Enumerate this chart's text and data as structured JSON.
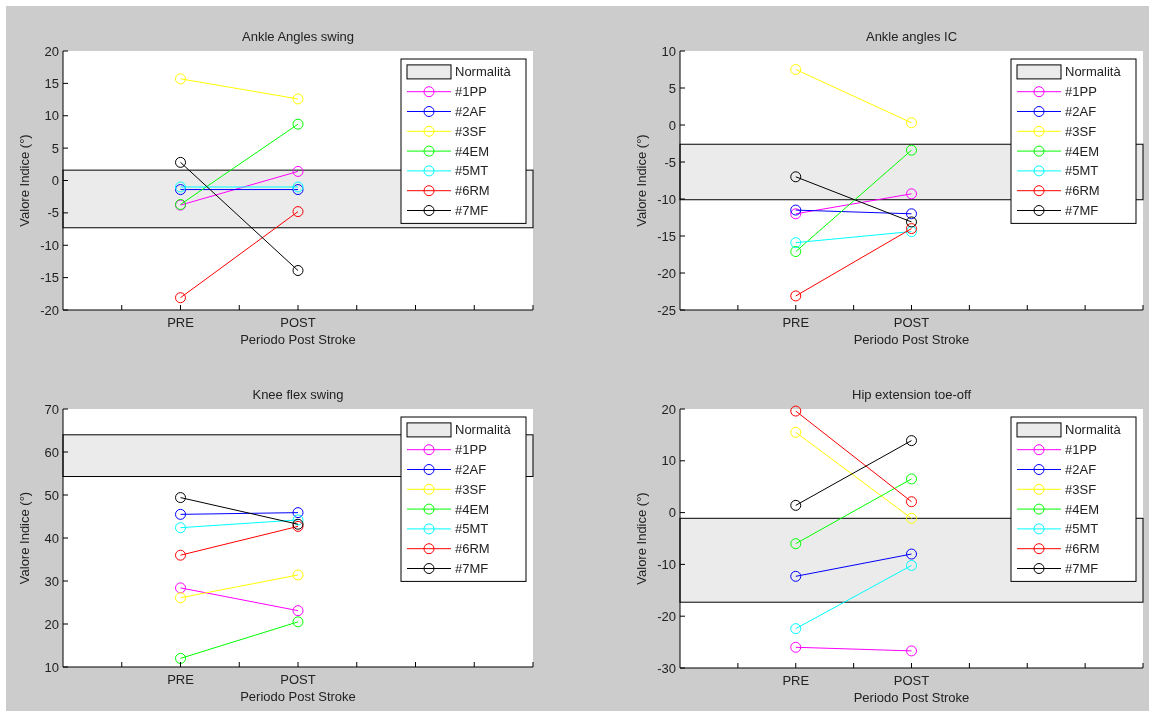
{
  "chart_data": [
    {
      "type": "line",
      "title": "Ankle Angles swing",
      "xlabel": "Periodo Post Stroke",
      "ylabel": "Valore Indice (°)",
      "categories": [
        "PRE",
        "POST"
      ],
      "ylim": [
        -20,
        20
      ],
      "yticks": [
        -20,
        -15,
        -10,
        -5,
        0,
        5,
        10,
        15,
        20
      ],
      "grid": false,
      "legend": "top right",
      "marker": "circle",
      "line_style": "solid",
      "bands": [
        {
          "axis": "y",
          "from": -7.3,
          "to": 1.6,
          "label": "Normalità",
          "color": "#ebebeb"
        }
      ],
      "series": [
        {
          "name": "#1PP",
          "color": "#ff00ff",
          "values": [
            -3.8,
            1.4
          ]
        },
        {
          "name": "#2AF",
          "color": "#0000ff",
          "values": [
            -1.4,
            -1.4
          ]
        },
        {
          "name": "#3SF",
          "color": "#ffff00",
          "values": [
            15.7,
            12.6
          ]
        },
        {
          "name": "#4EM",
          "color": "#00ff00",
          "values": [
            -3.7,
            8.7
          ]
        },
        {
          "name": "#5MT",
          "color": "#00ffff",
          "values": [
            -1.0,
            -1.0
          ]
        },
        {
          "name": "#6RM",
          "color": "#ff0000",
          "values": [
            -18.1,
            -4.8
          ]
        },
        {
          "name": "#7MF",
          "color": "#000000",
          "values": [
            2.8,
            -13.9
          ]
        }
      ]
    },
    {
      "type": "line",
      "title": "Ankle angles IC",
      "xlabel": "Periodo Post Stroke",
      "ylabel": "Valore Indice (°)",
      "categories": [
        "PRE",
        "POST"
      ],
      "ylim": [
        -25,
        10
      ],
      "yticks": [
        -25,
        -20,
        -15,
        -10,
        -5,
        0,
        5,
        10
      ],
      "grid": false,
      "legend": "top right",
      "marker": "circle",
      "line_style": "solid",
      "bands": [
        {
          "axis": "y",
          "from": -10.1,
          "to": -2.6,
          "label": "Normalità",
          "color": "#ebebeb"
        }
      ],
      "series": [
        {
          "name": "#1PP",
          "color": "#ff00ff",
          "values": [
            -12.0,
            -9.3
          ]
        },
        {
          "name": "#2AF",
          "color": "#0000ff",
          "values": [
            -11.5,
            -12.0
          ]
        },
        {
          "name": "#3SF",
          "color": "#ffff00",
          "values": [
            7.5,
            0.3
          ]
        },
        {
          "name": "#4EM",
          "color": "#00ff00",
          "values": [
            -17.1,
            -3.4
          ]
        },
        {
          "name": "#5MT",
          "color": "#00ffff",
          "values": [
            -15.9,
            -14.4
          ]
        },
        {
          "name": "#6RM",
          "color": "#ff0000",
          "values": [
            -23.1,
            -14.0
          ]
        },
        {
          "name": "#7MF",
          "color": "#000000",
          "values": [
            -7.0,
            -13.1
          ]
        }
      ]
    },
    {
      "type": "line",
      "title": "Knee flex swing",
      "xlabel": "Periodo Post Stroke",
      "ylabel": "Valore Indice (°)",
      "categories": [
        "PRE",
        "POST"
      ],
      "ylim": [
        10,
        70
      ],
      "yticks": [
        10,
        20,
        30,
        40,
        50,
        60,
        70
      ],
      "grid": false,
      "legend": "top right",
      "marker": "circle",
      "line_style": "solid",
      "bands": [
        {
          "axis": "y",
          "from": 54.3,
          "to": 64.0,
          "label": "Normalità",
          "color": "#ebebeb"
        }
      ],
      "series": [
        {
          "name": "#1PP",
          "color": "#ff00ff",
          "values": [
            28.4,
            23.1
          ]
        },
        {
          "name": "#2AF",
          "color": "#0000ff",
          "values": [
            45.5,
            45.9
          ]
        },
        {
          "name": "#3SF",
          "color": "#ffff00",
          "values": [
            26.1,
            31.4
          ]
        },
        {
          "name": "#4EM",
          "color": "#00ff00",
          "values": [
            12.0,
            20.5
          ]
        },
        {
          "name": "#5MT",
          "color": "#00ffff",
          "values": [
            42.4,
            44.2
          ]
        },
        {
          "name": "#6RM",
          "color": "#ff0000",
          "values": [
            36.0,
            42.7
          ]
        },
        {
          "name": "#7MF",
          "color": "#000000",
          "values": [
            49.4,
            43.2
          ]
        }
      ]
    },
    {
      "type": "line",
      "title": "Hip extension toe-off",
      "xlabel": "Periodo Post Stroke",
      "ylabel": "Valore Indice (°)",
      "categories": [
        "PRE",
        "POST"
      ],
      "ylim": [
        -30,
        20
      ],
      "yticks": [
        -30,
        -20,
        -10,
        0,
        10,
        20
      ],
      "grid": false,
      "legend": "top right",
      "marker": "circle",
      "line_style": "solid",
      "bands": [
        {
          "axis": "y",
          "from": -17.3,
          "to": -1.1,
          "label": "Normalità",
          "color": "#ebebeb"
        }
      ],
      "series": [
        {
          "name": "#1PP",
          "color": "#ff00ff",
          "values": [
            -26.0,
            -26.7
          ]
        },
        {
          "name": "#2AF",
          "color": "#0000ff",
          "values": [
            -12.3,
            -8.0
          ]
        },
        {
          "name": "#3SF",
          "color": "#ffff00",
          "values": [
            15.5,
            -1.1
          ]
        },
        {
          "name": "#4EM",
          "color": "#00ff00",
          "values": [
            -6.0,
            6.5
          ]
        },
        {
          "name": "#5MT",
          "color": "#00ffff",
          "values": [
            -22.4,
            -10.2
          ]
        },
        {
          "name": "#6RM",
          "color": "#ff0000",
          "values": [
            19.6,
            2.1
          ]
        },
        {
          "name": "#7MF",
          "color": "#000000",
          "values": [
            1.4,
            13.9
          ]
        }
      ]
    }
  ]
}
